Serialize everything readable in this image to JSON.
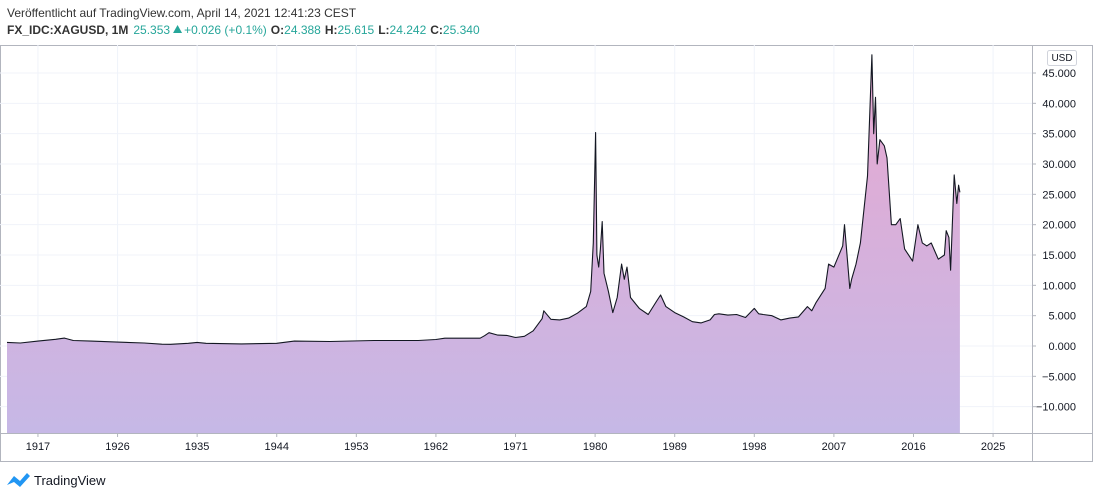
{
  "chart_data": {
    "type": "area",
    "title": "Veröffentlicht auf TradingView.com, April 14, 2021 12:41:23 CEST",
    "legend": {
      "symbol": "FX_IDC:XAGUSD, 1M",
      "last": "25.353",
      "change": "+0.026 (+0.1%)",
      "ohlc": [
        {
          "label": "O:",
          "value": "24.388"
        },
        {
          "label": "H:",
          "value": "25.615"
        },
        {
          "label": "L:",
          "value": "24.242"
        },
        {
          "label": "C:",
          "value": "25.340"
        }
      ]
    },
    "currency": "USD",
    "brand": "TradingView",
    "line_color": "#131722",
    "fill_top_color": "#e8a8d0",
    "fill_bottom_color": "#c6b8e6",
    "up_color": "#26a69a",
    "grid": true,
    "x": [
      1913.5,
      1915,
      1917,
      1919,
      1920,
      1921,
      1923,
      1926,
      1929,
      1931,
      1932,
      1934,
      1935,
      1936,
      1940,
      1944,
      1946,
      1950,
      1955,
      1960,
      1962,
      1963,
      1967,
      1967.5,
      1968,
      1969,
      1970,
      1971,
      1972,
      1973,
      1974,
      1974.2,
      1975,
      1976,
      1977,
      1978,
      1979,
      1979.5,
      1979.8,
      1980.05,
      1980.2,
      1980.4,
      1980.6,
      1980.8,
      1981,
      1981.5,
      1982,
      1982.5,
      1983,
      1983.3,
      1983.6,
      1984,
      1985,
      1986,
      1987,
      1987.4,
      1988,
      1989,
      1990,
      1991,
      1992,
      1993,
      1993.5,
      1994,
      1995,
      1996,
      1997,
      1998,
      1998.5,
      1999,
      2000,
      2001,
      2002,
      2003,
      2004,
      2004.5,
      2005,
      2006,
      2006.4,
      2007,
      2008,
      2008.2,
      2008.8,
      2009,
      2009.5,
      2010,
      2010.8,
      2011.3,
      2011.5,
      2011.7,
      2011.9,
      2012.2,
      2012.7,
      2013,
      2013.5,
      2014,
      2014.5,
      2015,
      2015.9,
      2016.5,
      2017,
      2017.5,
      2018,
      2018.8,
      2019.5,
      2019.7,
      2020,
      2020.2,
      2020.6,
      2020.9,
      2021.1,
      2021.25
    ],
    "values": [
      0.6,
      0.5,
      0.8,
      1.1,
      1.3,
      0.9,
      0.8,
      0.65,
      0.5,
      0.3,
      0.28,
      0.45,
      0.6,
      0.45,
      0.35,
      0.45,
      0.8,
      0.74,
      0.9,
      0.91,
      1.08,
      1.28,
      1.29,
      1.7,
      2.2,
      1.8,
      1.75,
      1.4,
      1.6,
      2.5,
      4.5,
      5.8,
      4.4,
      4.3,
      4.6,
      5.4,
      6.5,
      9,
      17,
      35.2,
      15,
      13,
      16,
      20.5,
      12,
      9,
      5.5,
      8,
      13.5,
      11,
      13,
      8,
      6.2,
      5.2,
      7.5,
      8.4,
      6.5,
      5.5,
      4.8,
      4.0,
      3.8,
      4.3,
      5.2,
      5.3,
      5.1,
      5.2,
      4.7,
      6.2,
      5.3,
      5.2,
      5.0,
      4.3,
      4.6,
      4.8,
      6.5,
      5.8,
      7.2,
      9.5,
      13.5,
      13,
      16.5,
      20,
      9.5,
      11,
      13.5,
      17,
      28,
      48,
      35,
      41,
      30,
      34,
      33,
      31,
      20,
      20,
      21,
      16,
      14,
      20,
      17,
      16.5,
      17,
      14.3,
      15,
      19,
      17.9,
      12.5,
      28.2,
      23.5,
      26.5,
      25.34
    ],
    "xlim": [
      1913.5,
      2029.4
    ],
    "ylim": [
      -14.34,
      49.45
    ],
    "xticks": [
      1917,
      1926,
      1935,
      1944,
      1953,
      1962,
      1971,
      1980,
      1989,
      1998,
      2007,
      2016,
      2025
    ],
    "yticks": [
      {
        "value": -10,
        "label": "−10.000"
      },
      {
        "value": -5,
        "label": "−5.000"
      },
      {
        "value": 0,
        "label": "0.000"
      },
      {
        "value": 5,
        "label": "5.000"
      },
      {
        "value": 10,
        "label": "10.000"
      },
      {
        "value": 15,
        "label": "15.000"
      },
      {
        "value": 20,
        "label": "20.000"
      },
      {
        "value": 25,
        "label": "25.000"
      },
      {
        "value": 30,
        "label": "30.000"
      },
      {
        "value": 35,
        "label": "35.000"
      },
      {
        "value": 40,
        "label": "40.000"
      },
      {
        "value": 45,
        "label": "45.000"
      }
    ]
  }
}
